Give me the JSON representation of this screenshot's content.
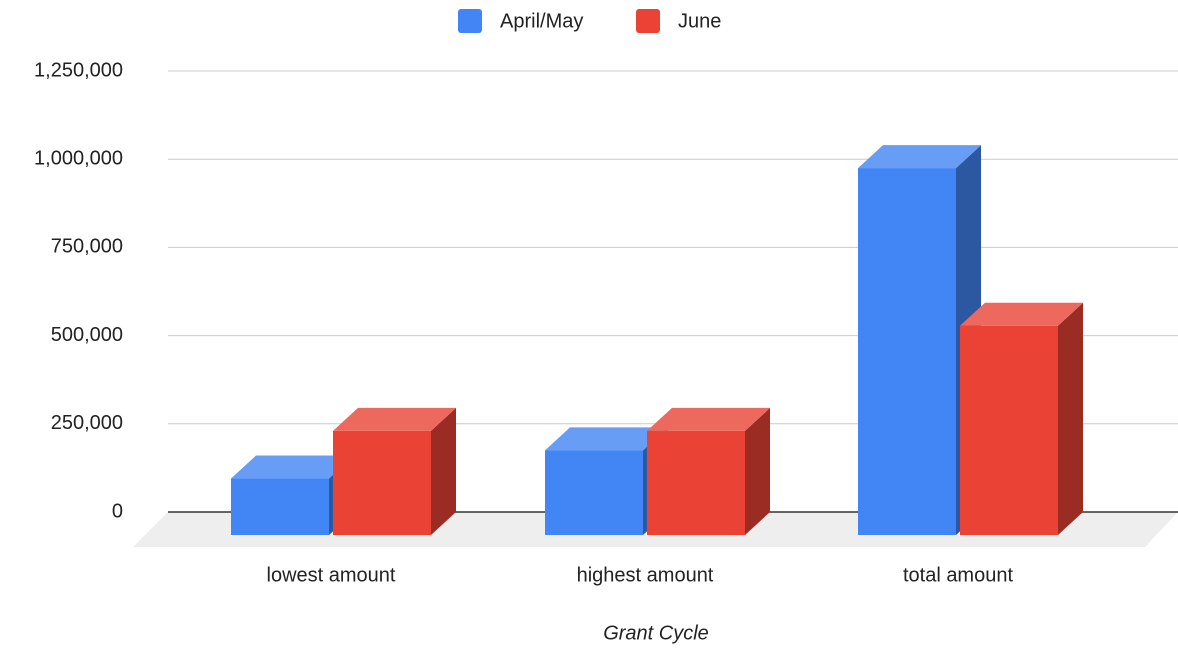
{
  "chart_data": {
    "type": "bar3d",
    "x_label": "Grant Cycle",
    "categories": [
      "lowest amount",
      "highest amount",
      "total amount"
    ],
    "series": [
      {
        "name": "April/May",
        "color": "#4285f4",
        "values": [
          160000,
          240000,
          1040000
        ]
      },
      {
        "name": "June",
        "color": "#ea4335",
        "values": [
          295000,
          295000,
          593000
        ]
      }
    ],
    "ylim": [
      0,
      1250000
    ],
    "yticks": [
      0,
      {
        "value": 250000,
        "label": "250,000"
      },
      {
        "value": 500000,
        "label": "500,000"
      },
      {
        "value": 750000,
        "label": "750,000"
      },
      {
        "value": 1000000,
        "label": "1,000,000"
      },
      {
        "value": 1250000,
        "label": "1,250,000"
      }
    ],
    "grid": true,
    "legend": "top"
  }
}
